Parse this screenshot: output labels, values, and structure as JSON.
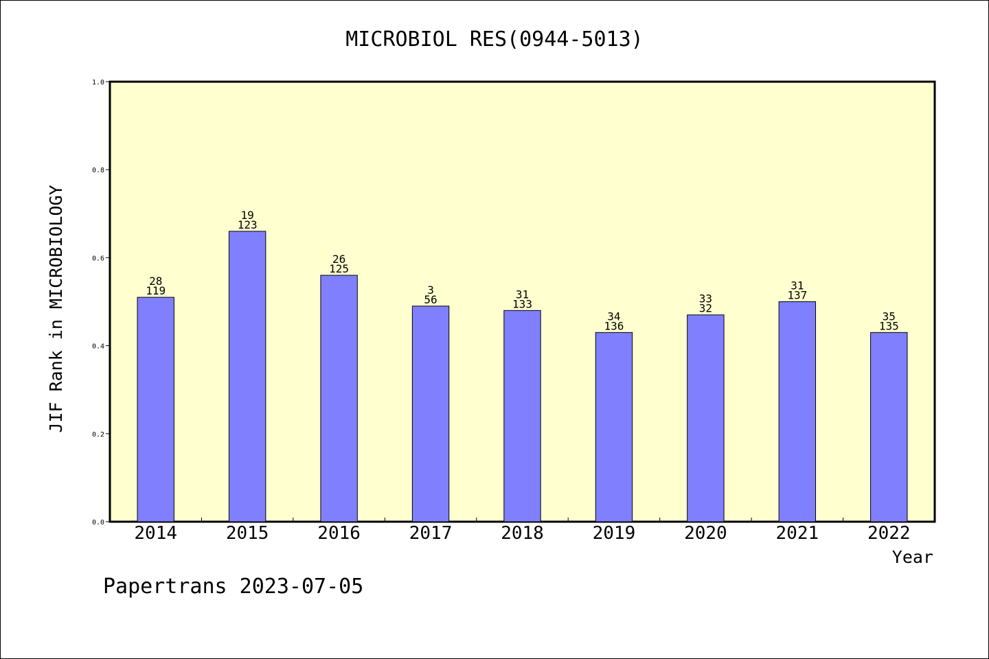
{
  "chart_data": {
    "type": "bar",
    "title": "MICROBIOL RES(0944-5013)",
    "xlabel": "Year",
    "ylabel": "JIF Rank in MICROBIOLOGY",
    "ylim": [
      0.0,
      1.0
    ],
    "yticks": [
      "0.0",
      "0.2",
      "0.4",
      "0.6",
      "0.8",
      "1.0"
    ],
    "grid": false,
    "categories": [
      "2014",
      "2015",
      "2016",
      "2017",
      "2018",
      "2019",
      "2020",
      "2021",
      "2022"
    ],
    "values": [
      0.51,
      0.66,
      0.56,
      0.49,
      0.48,
      0.43,
      0.47,
      0.5,
      0.43
    ],
    "rank_labels": [
      "28",
      "19",
      "26",
      "3",
      "31",
      "34",
      "33",
      "31",
      "35"
    ],
    "total_labels": [
      "119",
      "123",
      "125",
      "56",
      "133",
      "136",
      "32",
      "137",
      "135"
    ]
  },
  "footer": {
    "credit": "Papertrans 2023-07-05"
  },
  "colors": {
    "plot_background": "#FFFFD0",
    "bar_fill": "#8080FF",
    "bar_stroke": "#000000",
    "axis": "#000000"
  }
}
